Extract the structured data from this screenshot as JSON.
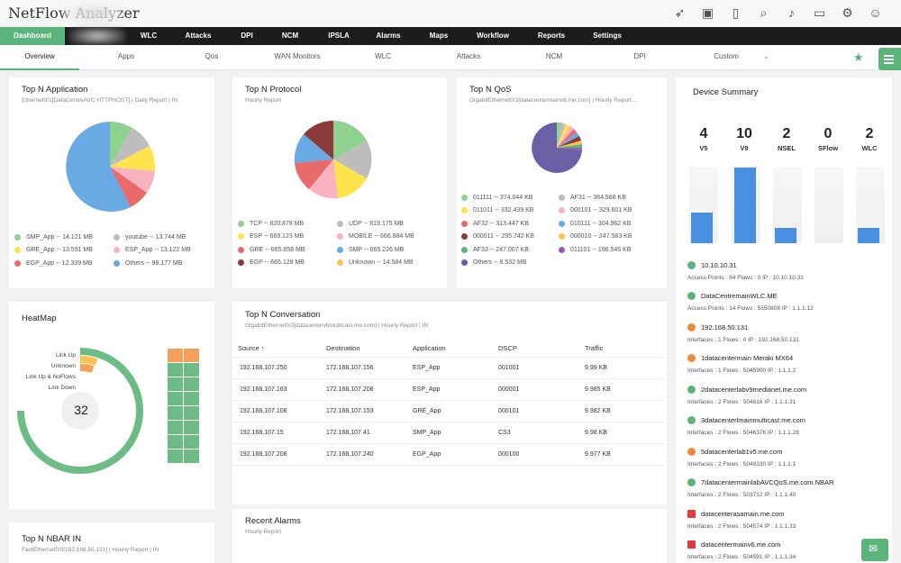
{
  "app": {
    "title": "NetFlow Analyzer"
  },
  "colors": {
    "accent": "#5bb47a",
    "nav_bg": "#1c1c1c",
    "bar": "#4a90e2"
  },
  "header_icons": [
    "rocket-icon",
    "monitor-icon",
    "device-icon",
    "search-icon",
    "bell-icon",
    "battery-icon",
    "gear-icon",
    "user-icon"
  ],
  "main_nav": [
    "Dashboard",
    "WLC",
    "Attacks",
    "DPI",
    "NCM",
    "IPSLA",
    "Alarms",
    "Maps",
    "Workflow",
    "Reports",
    "Settings"
  ],
  "sub_nav": [
    "Overview",
    "Apps",
    "Qos",
    "WAN Monitors",
    "WLC",
    "Attacks",
    "NCM",
    "DPI",
    "Custom"
  ],
  "top_app": {
    "title": "Top N Application",
    "subtitle": "Ethernet0/1[DataCentreAVC HTTPHOST] | Daily Report | IN",
    "legend": [
      {
        "label": "SMP_App -- 14.121 MB",
        "color": "#8fd18f"
      },
      {
        "label": "youtube -- 13.744 MB",
        "color": "#bdbdbd"
      },
      {
        "label": "GRE_App -- 13.591 MB",
        "color": "#ffe34d"
      },
      {
        "label": "ESP_App -- 13.122 MB",
        "color": "#f9b2c0"
      },
      {
        "label": "EGP_App -- 12.339 MB",
        "color": "#e86a6a"
      },
      {
        "label": "Others -- 98.177 MB",
        "color": "#6aaae4"
      }
    ]
  },
  "top_protocol": {
    "title": "Top N Protocol",
    "subtitle": "Hourly Report",
    "legend": [
      {
        "label": "TCP -- 820.878 MB",
        "color": "#8fd18f"
      },
      {
        "label": "UDP -- 819.175 MB",
        "color": "#bdbdbd"
      },
      {
        "label": "ESP -- 669.123 MB",
        "color": "#ffe34d"
      },
      {
        "label": "MOBILE -- 666.884 MB",
        "color": "#f9b2c0"
      },
      {
        "label": "GRE -- 665.858 MB",
        "color": "#e86a6a"
      },
      {
        "label": "SMP -- 665.226 MB",
        "color": "#6aaae4"
      },
      {
        "label": "EGP -- 665.129 MB",
        "color": "#8b3a3a"
      },
      {
        "label": "Unknown -- 14.584 MB",
        "color": "#ffc04d"
      }
    ]
  },
  "top_qos": {
    "title": "Top N QoS",
    "subtitle": "GigabitEthernet0/2[datacentermainv6.me.com] | Hourly Report ...",
    "legend": [
      {
        "label": "011111 -- 374.044 KB",
        "color": "#8fd18f"
      },
      {
        "label": "AF31 -- 364.568 KB",
        "color": "#bdbdbd"
      },
      {
        "label": "011011 -- 332.439 KB",
        "color": "#ffe34d"
      },
      {
        "label": "000101 -- 329.601 KB",
        "color": "#f9b2c0"
      },
      {
        "label": "AF32 -- 313.447 KB",
        "color": "#e86a6a"
      },
      {
        "label": "010111 -- 304.962 KB",
        "color": "#6aaae4"
      },
      {
        "label": "000011 -- 295.742 KB",
        "color": "#8b3a3a"
      },
      {
        "label": "000010 -- 247.583 KB",
        "color": "#ffc04d"
      },
      {
        "label": "AF33 -- 247.007 KB",
        "color": "#5bb47a"
      },
      {
        "label": "011101 -- 196.545 KB",
        "color": "#9b59b6"
      },
      {
        "label": "Others -- 8.532 MB",
        "color": "#6b5fa6"
      }
    ]
  },
  "heatmap": {
    "title": "HeatMap",
    "value": "32",
    "labels": [
      "Link Up",
      "Unknown",
      "Link Up & NoFlows",
      "Link Down"
    ]
  },
  "conversation": {
    "title": "Top N Conversation",
    "subtitle": "GigabitEthernet0/2[datacenterv6multicast.me.com] | Hourly Report | IN",
    "columns": [
      "Source",
      "Destination",
      "Application",
      "DSCP",
      "Traffic"
    ],
    "rows": [
      [
        "192.168.107.250",
        "172.168.107.156",
        "ESP_App",
        "001001",
        "9.99 KB"
      ],
      [
        "192.168.107.163",
        "172.168.107.208",
        "ESP_App",
        "000001",
        "9.985 KB"
      ],
      [
        "192.168.107.108",
        "172.168.107.153",
        "GRE_App",
        "000101",
        "9.982 KB"
      ],
      [
        "192.168.107.15",
        "172.168.107.41",
        "SMP_App",
        "CS3",
        "9.98 KB"
      ],
      [
        "192.168.107.208",
        "172.168.107.240",
        "EGP_App",
        "000100",
        "9.977 KB"
      ]
    ]
  },
  "alarms": {
    "title": "Recent Alarms",
    "subtitle": "Hourly Report"
  },
  "nbar": {
    "title": "Top N NBAR IN",
    "subtitle": "FastEthernet0/0[192.168.50.131] | Hourly Report | IN"
  },
  "device_summary": {
    "title": "Device Summary",
    "counts": [
      {
        "value": "4",
        "label": "V5",
        "level": 0.4
      },
      {
        "value": "10",
        "label": "V9",
        "level": 1.0
      },
      {
        "value": "2",
        "label": "NSEL",
        "level": 0.2
      },
      {
        "value": "0",
        "label": "SFlow",
        "level": 0.0
      },
      {
        "value": "2",
        "label": "WLC",
        "level": 0.2
      }
    ],
    "devices": [
      {
        "name": "10.10.10.31",
        "info": "Access Points : 64    Flows : 0    IP : 10.10.10.31",
        "status": "#5bb47a"
      },
      {
        "name": "DataCentremainWLC.ME",
        "info": "Access Points : 14    Flows : 5550808    IP : 1.1.1.12",
        "status": "#5bb47a"
      },
      {
        "name": "192.168.50.131",
        "info": "Interfaces : 1    Flows : 0    IP : 192.168.50.131",
        "status": "#f08a3c"
      },
      {
        "name": "1datacentermain Meraki MX64",
        "info": "Interfaces : 1    Flows : 5045900    IP : 1.1.1.2",
        "status": "#f08a3c"
      },
      {
        "name": "2datacenterlabv9medianet.me.com",
        "info": "Interfaces : 2    Flows : 504616    IP : 1.1.1.31",
        "status": "#5bb47a"
      },
      {
        "name": "3datacenterlmainmulticast.me.com",
        "info": "Interfaces : 2    Flows : 5046376    IP : 1.1.1.28",
        "status": "#5bb47a"
      },
      {
        "name": "5datacenterlab1v5.me.com",
        "info": "Interfaces : 2    Flows : 5046330    IP : 1.1.1.1",
        "status": "#f08a3c"
      },
      {
        "name": "7datacentermainlabAVCQoS.me.com.NBAR",
        "info": "Interfaces : 2    Flows : 503712    IP : 1.1.1.40",
        "status": "#5bb47a"
      },
      {
        "name": "datacenterasamain.me.com",
        "info": "Interfaces : 2    Flows : 504574    IP : 1.1.1.33",
        "status": "#e03c3c"
      },
      {
        "name": "datacentermainv6.me.com",
        "info": "Interfaces : 2    Flows : 504591    IP : 1.1.1.34",
        "status": "#e03c3c"
      }
    ]
  }
}
